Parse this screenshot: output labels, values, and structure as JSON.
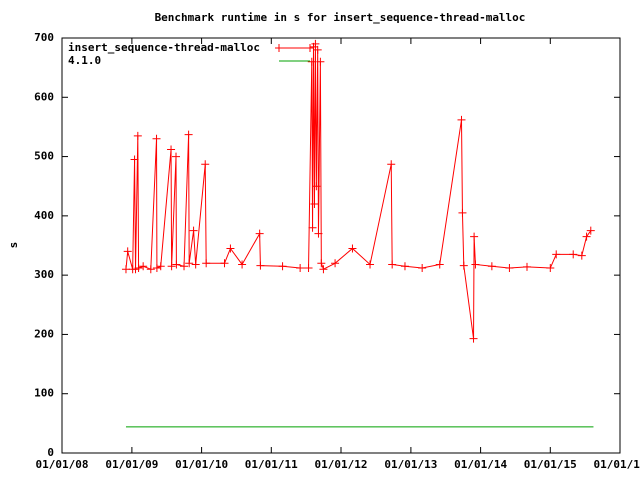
{
  "chart_data": {
    "type": "line",
    "title": "Benchmark runtime in s for insert_sequence-thread-malloc",
    "ylabel": "s",
    "xlim": [
      "2008-01-01",
      "2016-01-01"
    ],
    "xticks": [
      {
        "value": "2008-01-01",
        "label": "01/01/08"
      },
      {
        "value": "2009-01-01",
        "label": "01/01/09"
      },
      {
        "value": "2010-01-01",
        "label": "01/01/10"
      },
      {
        "value": "2011-01-01",
        "label": "01/01/11"
      },
      {
        "value": "2012-01-01",
        "label": "01/01/12"
      },
      {
        "value": "2013-01-01",
        "label": "01/01/13"
      },
      {
        "value": "2014-01-01",
        "label": "01/01/14"
      },
      {
        "value": "2015-01-01",
        "label": "01/01/15"
      },
      {
        "value": "2016-01-01",
        "label": "01/01/16"
      }
    ],
    "ylim": [
      0,
      700
    ],
    "yticks": [
      0,
      100,
      200,
      300,
      400,
      500,
      600,
      700
    ],
    "legend": "top-left",
    "series": [
      {
        "name": "insert_sequence-thread-malloc",
        "color": "#ff0000",
        "markers": true,
        "x": [
          "2008-12-01",
          "2008-12-10",
          "2009-01-05",
          "2009-01-15",
          "2009-01-20",
          "2009-02-01",
          "2009-02-05",
          "2009-03-01",
          "2009-04-10",
          "2009-05-10",
          "2009-05-12",
          "2009-06-01",
          "2009-07-25",
          "2009-07-28",
          "2009-08-20",
          "2009-08-22",
          "2009-10-01",
          "2009-10-25",
          "2009-10-28",
          "2009-11-20",
          "2009-12-01",
          "2010-01-20",
          "2010-01-25",
          "2010-05-01",
          "2010-06-01",
          "2010-08-01",
          "2010-11-01",
          "2010-11-05",
          "2011-03-01",
          "2011-06-01",
          "2011-07-15",
          "2011-08-01",
          "2011-08-05",
          "2011-08-10",
          "2011-08-15",
          "2011-08-20",
          "2011-08-25",
          "2011-09-01",
          "2011-09-05",
          "2011-09-15",
          "2011-09-20",
          "2011-10-01",
          "2011-12-01",
          "2012-03-01",
          "2012-06-01",
          "2012-09-20",
          "2012-09-25",
          "2012-12-01",
          "2013-03-01",
          "2013-06-01",
          "2013-09-23",
          "2013-09-28",
          "2013-10-05",
          "2013-11-25",
          "2013-11-28",
          "2013-12-05",
          "2014-03-01",
          "2014-06-01",
          "2014-09-01",
          "2015-01-01",
          "2015-02-01",
          "2015-05-01",
          "2015-06-15",
          "2015-07-10",
          "2015-08-01"
        ],
        "values": [
          310,
          340,
          310,
          495,
          310,
          535,
          312,
          315,
          310,
          530,
          312,
          315,
          512,
          315,
          500,
          318,
          315,
          537,
          320,
          375,
          318,
          487,
          320,
          320,
          345,
          318,
          370,
          316,
          315,
          312,
          312,
          660,
          380,
          685,
          420,
          690,
          450,
          680,
          370,
          660,
          320,
          310,
          320,
          345,
          318,
          487,
          318,
          315,
          312,
          318,
          562,
          405,
          316,
          193,
          365,
          318,
          315,
          312,
          314,
          312,
          335,
          335,
          333,
          365,
          375
        ]
      },
      {
        "name": "4.1.0",
        "color": "#00a000",
        "markers": false,
        "x": [
          "2008-12-01",
          "2015-08-15"
        ],
        "values": [
          44,
          44
        ]
      }
    ]
  }
}
